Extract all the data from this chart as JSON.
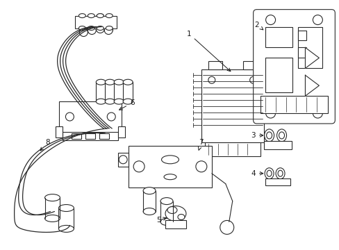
{
  "background_color": "#ffffff",
  "line_color": "#2a2a2a",
  "label_color": "#1a1a1a",
  "figsize": [
    4.89,
    3.6
  ],
  "dpi": 100,
  "label_fontsize": 7.5,
  "line_width": 0.8
}
